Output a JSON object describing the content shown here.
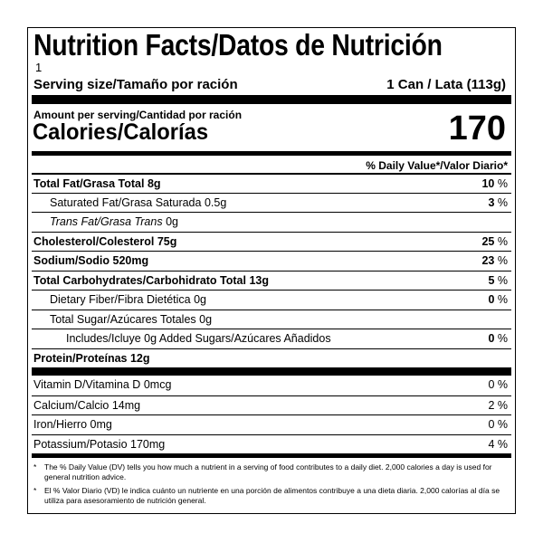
{
  "header": {
    "title": "Nutrition Facts/Datos de Nutrición",
    "servings": "1",
    "serving_size_label": "Serving size/Tamaño por ración",
    "serving_size_value": "1 Can / Lata (113g)"
  },
  "calories": {
    "amount_label": "Amount per serving/Cantidad por ración",
    "label": "Calories/Calorías",
    "value": "170"
  },
  "dv_header": "% Daily Value*/Valor Diario*",
  "nutrients": [
    {
      "name": "Total Fat/Grasa Total",
      "amount": "8g",
      "dv": "10",
      "unit": "%"
    },
    {
      "name": "Saturated Fat/Grasa Saturada",
      "amount": "0.5g",
      "dv": "3",
      "unit": "%"
    },
    {
      "name": "Trans Fat/Grasa Trans",
      "amount": "0g"
    },
    {
      "name": "Cholesterol/Colesterol",
      "amount": "75g",
      "dv": "25",
      "unit": "%"
    },
    {
      "name": "Sodium/Sodio",
      "amount": "520mg",
      "dv": "23",
      "unit": "%"
    },
    {
      "name": "Total Carbohydrates/Carbohidrato Total",
      "amount": "13g",
      "dv": "5",
      "unit": "%"
    },
    {
      "name": "Dietary Fiber/Fibra Dietética",
      "amount": "0g",
      "dv": "0",
      "unit": "%"
    },
    {
      "name": "Total Sugar/Azúcares Totales",
      "amount": "0g"
    },
    {
      "name": "Includes/Icluye",
      "amount": "0g",
      "suffix": "Added Sugars/Azúcares Añadidos",
      "dv": "0",
      "unit": "%"
    },
    {
      "name": "Protein/Proteínas",
      "amount": "12g"
    }
  ],
  "vitamins": [
    {
      "name": "Vitamin D/Vitamina D",
      "amount": "0mcg",
      "dv": "0",
      "unit": "%"
    },
    {
      "name": "Calcium/Calcio",
      "amount": "14mg",
      "dv": "2",
      "unit": "%"
    },
    {
      "name": "Iron/Hierro",
      "amount": "0mg",
      "dv": "0",
      "unit": "%"
    },
    {
      "name": "Potassium/Potasio",
      "amount": "170mg",
      "dv": "4",
      "unit": "%"
    }
  ],
  "footnotes": [
    {
      "mark": "*",
      "text": "The % Daily Value (DV) tells you how much a nutrient in a serving of food contributes to a daily diet. 2,000 calories a day is used for general nutrition advice."
    },
    {
      "mark": "*",
      "text": "El % Valor Diario (VD) le indica cuánto un nutriente en una porción de alimentos contribuye a una dieta diaria. 2,000 calorías al día se utiliza para asesoramiento de nutrición general."
    }
  ]
}
